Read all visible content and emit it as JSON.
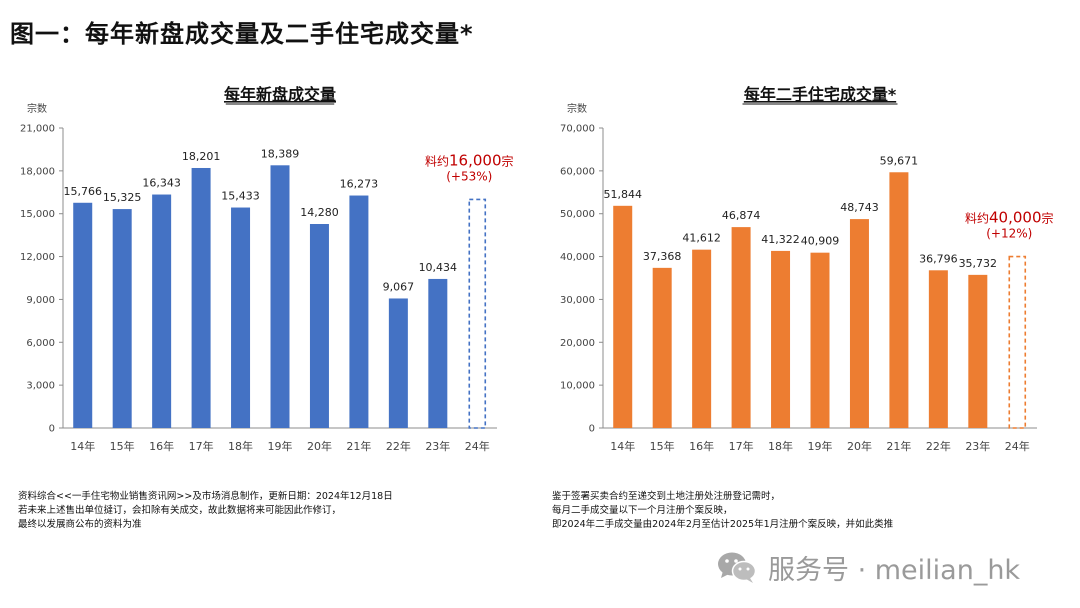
{
  "page": {
    "title": "图一：每年新盘成交量及二手住宅成交量*"
  },
  "chart_data": [
    {
      "type": "bar",
      "title": "每年新盘成交量",
      "ylabel": "宗数",
      "xlabel": "",
      "categories": [
        "14年",
        "15年",
        "16年",
        "17年",
        "18年",
        "19年",
        "20年",
        "21年",
        "22年",
        "23年",
        "24年"
      ],
      "values": [
        15766,
        15325,
        16343,
        18201,
        15433,
        18389,
        14280,
        16273,
        9067,
        10434,
        null
      ],
      "value_labels": [
        "15,766",
        "15,325",
        "16,343",
        "18,201",
        "15,433",
        "18,389",
        "14,280",
        "16,273",
        "9,067",
        "10,434",
        ""
      ],
      "ylim": [
        0,
        21000
      ],
      "yticks": [
        0,
        3000,
        6000,
        9000,
        12000,
        15000,
        18000,
        21000
      ],
      "ytick_labels": [
        "0",
        "3,000",
        "6,000",
        "9,000",
        "12,000",
        "15,000",
        "18,000",
        "21,000"
      ],
      "bar_color": "#4472C4",
      "forecast": {
        "category": "24年",
        "value": 16000,
        "label_prefix": "料约",
        "label_value": "16,000",
        "label_suffix": "宗",
        "change": "(+53%)",
        "color": "#4472C4",
        "label_color": "#C00000"
      }
    },
    {
      "type": "bar",
      "title": "每年二手住宅成交量*",
      "ylabel": "宗数",
      "xlabel": "",
      "categories": [
        "14年",
        "15年",
        "16年",
        "17年",
        "18年",
        "19年",
        "20年",
        "21年",
        "22年",
        "23年",
        "24年"
      ],
      "values": [
        51844,
        37368,
        41612,
        46874,
        41322,
        40909,
        48743,
        59671,
        36796,
        35732,
        null
      ],
      "value_labels": [
        "51,844",
        "37,368",
        "41,612",
        "46,874",
        "41,322",
        "40,909",
        "48,743",
        "59,671",
        "36,796",
        "35,732",
        ""
      ],
      "ylim": [
        0,
        70000
      ],
      "yticks": [
        0,
        10000,
        20000,
        30000,
        40000,
        50000,
        60000,
        70000
      ],
      "ytick_labels": [
        "0",
        "10,000",
        "20,000",
        "30,000",
        "40,000",
        "50,000",
        "60,000",
        "70,000"
      ],
      "bar_color": "#ED7D31",
      "forecast": {
        "category": "24年",
        "value": 40000,
        "label_prefix": "料约",
        "label_value": "40,000",
        "label_suffix": "宗",
        "change": "(+12%)",
        "color": "#ED7D31",
        "label_color": "#C00000"
      }
    }
  ],
  "notes_left": [
    "资料综合<<一手住宅物业销售资讯网>>及市场消息制作，更新日期：2024年12月18日",
    "若未来上述售出单位撻订，会扣除有关成交，故此数据将来可能因此作修订，",
    "最终以发展商公布的资料为准"
  ],
  "notes_right": [
    "鉴于签署买卖合约至递交到土地注册处注册登记需时，",
    "每月二手成交量以下一个月注册个案反映，",
    "即2024年二手成交量由2024年2月至估计2025年1月注册个案反映，并如此类推"
  ],
  "watermark": {
    "icon": "wechat-icon",
    "text": "服务号 · meilian_hk"
  }
}
